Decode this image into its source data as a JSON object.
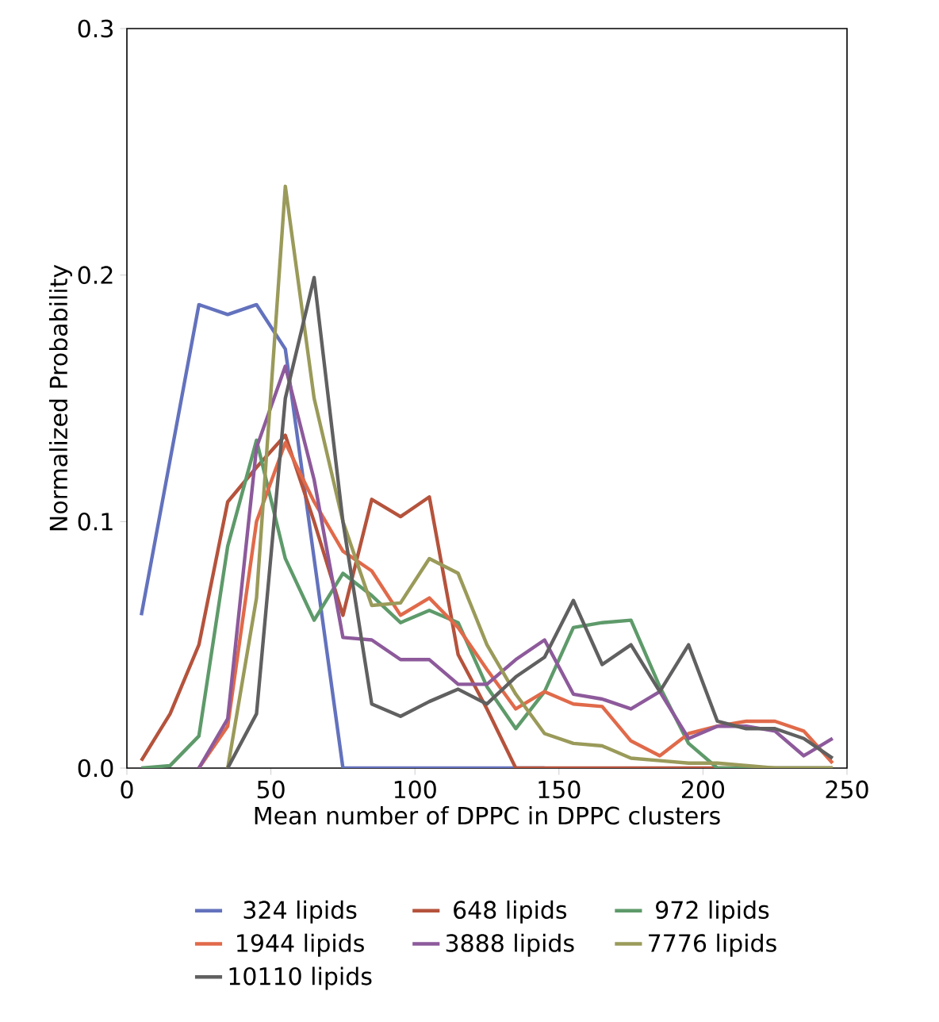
{
  "chart_data": {
    "type": "line",
    "xlabel": "Mean number of DPPC in DPPC clusters",
    "ylabel": "Normalized Probability",
    "x": [
      5,
      15,
      25,
      35,
      45,
      55,
      65,
      75,
      85,
      95,
      105,
      115,
      125,
      135,
      145,
      155,
      165,
      175,
      185,
      195,
      205,
      215,
      225,
      235,
      245
    ],
    "xlim": [
      0,
      250
    ],
    "xticks": [
      0,
      50,
      100,
      150,
      200,
      250
    ],
    "ylim": [
      0,
      0.3
    ],
    "yticks": [
      {
        "value": 0,
        "label": "0.0"
      },
      {
        "value": 0.1,
        "label": "0.1"
      },
      {
        "value": 0.2,
        "label": "0.2"
      },
      {
        "value": 0.3,
        "label": "0.3"
      }
    ],
    "grid": false,
    "legend": "bottom",
    "marker": "none",
    "line_style": "solid",
    "series": [
      {
        "name": "324 lipids",
        "color": "#6372bd",
        "values": [
          0.062,
          0.125,
          0.188,
          0.184,
          0.188,
          0.17,
          0.085,
          0,
          0,
          0,
          0,
          0,
          0,
          0,
          0,
          null,
          null,
          null,
          null,
          null,
          null,
          null,
          null,
          null,
          null
        ]
      },
      {
        "name": "648 lipids",
        "color": "#b5533c",
        "values": [
          0.003,
          0.022,
          0.05,
          0.108,
          0.122,
          0.135,
          0.1,
          0.062,
          0.109,
          0.102,
          0.11,
          0.046,
          0.024,
          0,
          0,
          0,
          0,
          0,
          0,
          0,
          0,
          0,
          0,
          0,
          0
        ]
      },
      {
        "name": "972 lipids",
        "color": "#5e9a6a",
        "values": [
          0,
          0.001,
          0.013,
          0.09,
          0.133,
          0.085,
          0.06,
          0.079,
          0.07,
          0.059,
          0.064,
          0.059,
          0.033,
          0.016,
          0.031,
          0.057,
          0.059,
          0.06,
          0.033,
          0.01,
          0,
          0,
          0,
          0,
          0
        ]
      },
      {
        "name": "1944 lipids",
        "color": "#e06a4a",
        "values": [
          null,
          null,
          0,
          0.017,
          0.1,
          0.132,
          0.108,
          0.088,
          0.08,
          0.062,
          0.069,
          0.057,
          0.04,
          0.024,
          0.031,
          0.026,
          0.025,
          0.011,
          0.005,
          0.014,
          0.017,
          0.019,
          0.019,
          0.015,
          0.002
        ]
      },
      {
        "name": "3888 lipids",
        "color": "#8d5a9b",
        "values": [
          null,
          null,
          0,
          0.02,
          0.13,
          0.163,
          0.117,
          0.053,
          0.052,
          0.044,
          0.044,
          0.034,
          0.034,
          0.044,
          0.052,
          0.03,
          0.028,
          0.024,
          0.031,
          0.012,
          0.017,
          0.017,
          0.015,
          0.005,
          0.012
        ]
      },
      {
        "name": "7776 lipids",
        "color": "#9a9a5a",
        "values": [
          null,
          null,
          null,
          0,
          0.069,
          0.236,
          0.15,
          0.1,
          0.066,
          0.067,
          0.085,
          0.079,
          0.05,
          0.03,
          0.014,
          0.01,
          0.009,
          0.004,
          0.003,
          0.002,
          0.002,
          0.001,
          0,
          0,
          0
        ]
      },
      {
        "name": "10110 lipids",
        "color": "#606060",
        "values": [
          null,
          null,
          null,
          0,
          0.022,
          0.15,
          0.199,
          0.1,
          0.026,
          0.021,
          0.027,
          0.032,
          0.026,
          0.037,
          0.045,
          0.068,
          0.042,
          0.05,
          0.031,
          0.05,
          0.019,
          0.016,
          0.016,
          0.012,
          0.004
        ]
      }
    ]
  }
}
